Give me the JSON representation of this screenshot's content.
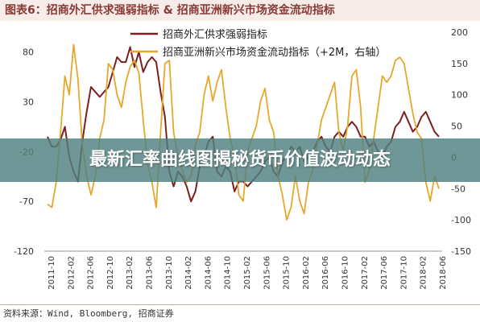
{
  "figure_title": "图表6：招商外汇供求强弱指标 & 招商亚洲新兴市场资金流动指标",
  "overlay_text": "最新汇率曲线图揭秘货币价值波动动态",
  "source_text": "资料来源：Wind, Bloomberg, 招商证券",
  "colors": {
    "series1": "#7b1f1f",
    "series2": "#e6a82a",
    "title_bg": "#f6ece8",
    "title_fg": "#8a3a34",
    "overlay_bg": "#508080"
  },
  "chart_data": {
    "type": "line",
    "title": "",
    "left_axis": {
      "ticks": [
        80,
        30,
        -20,
        -70,
        -120
      ],
      "ylim": [
        -120,
        100
      ]
    },
    "right_axis": {
      "ticks": [
        200,
        150,
        100,
        50,
        0,
        -50,
        -100,
        -150
      ],
      "ylim": [
        -150,
        200
      ]
    },
    "x_labels": [
      "2011-10",
      "2012-02",
      "2012-06",
      "2012-10",
      "2013-02",
      "2013-06",
      "2013-10",
      "2014-02",
      "2014-06",
      "2014-10",
      "2015-02",
      "2015-06",
      "2015-10",
      "2016-02",
      "2016-06",
      "2016-10",
      "2017-02",
      "2017-06",
      "2017-10",
      "2018-02",
      "2018-06"
    ],
    "series": [
      {
        "name": "招商外汇供求强弱指标",
        "axis": "left",
        "values": [
          -5,
          -15,
          -15,
          -8,
          5,
          -25,
          -40,
          -50,
          -10,
          20,
          45,
          40,
          35,
          40,
          45,
          60,
          75,
          70,
          70,
          85,
          65,
          80,
          60,
          70,
          75,
          70,
          40,
          15,
          -40,
          -55,
          -40,
          -45,
          -55,
          -70,
          -60,
          -35,
          -25,
          -10,
          -5,
          -40,
          -45,
          -35,
          -40,
          -60,
          -50,
          -50,
          -55,
          -50,
          -45,
          -40,
          -30,
          -25,
          -40,
          -45,
          -30,
          -25,
          -15,
          -20,
          -15,
          -30,
          -25,
          -20,
          -10,
          -5,
          -15,
          -20,
          -5,
          0,
          -5,
          5,
          10,
          5,
          -5,
          -5,
          -15,
          -10,
          -20,
          -25,
          -15,
          -10,
          5,
          10,
          20,
          10,
          0,
          5,
          15,
          20,
          10,
          0,
          -5
        ]
      },
      {
        "name": "招商亚洲新兴市场资金流动指标（+2M，右轴）",
        "axis": "right",
        "values": [
          -75,
          -80,
          -40,
          40,
          130,
          100,
          180,
          125,
          20,
          -30,
          -60,
          -30,
          30,
          60,
          150,
          140,
          100,
          80,
          120,
          145,
          155,
          135,
          60,
          -10,
          -40,
          -80,
          40,
          150,
          155,
          40,
          0,
          -20,
          -40,
          -30,
          20,
          40,
          100,
          130,
          90,
          120,
          140,
          80,
          30,
          0,
          -60,
          -70,
          10,
          30,
          50,
          90,
          110,
          60,
          40,
          -30,
          -60,
          -100,
          -80,
          -30,
          -70,
          -90,
          -40,
          -20,
          20,
          60,
          80,
          100,
          120,
          40,
          10,
          50,
          130,
          140,
          80,
          -40,
          -20,
          30,
          80,
          130,
          120,
          130,
          155,
          160,
          150,
          110,
          70,
          40,
          30,
          -40,
          -70,
          -30,
          -50
        ]
      }
    ]
  }
}
